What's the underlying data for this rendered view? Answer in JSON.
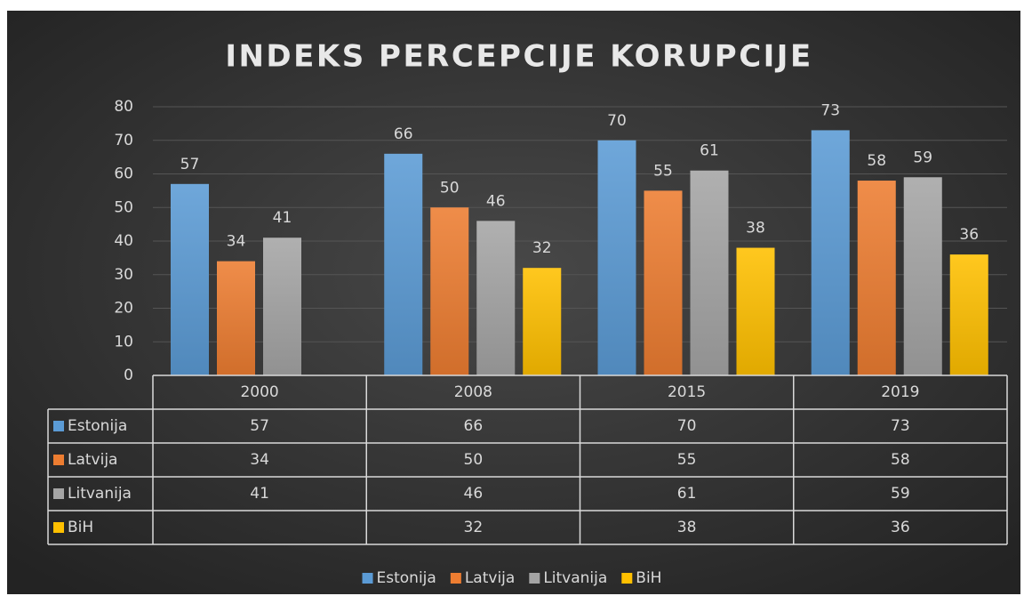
{
  "chart_data": {
    "type": "bar",
    "title": "INDEKS PERCEPCIJE KORUPCIJE",
    "categories": [
      "2000",
      "2008",
      "2015",
      "2019"
    ],
    "series": [
      {
        "name": "Estonija",
        "color": "#5b9bd5",
        "values": [
          57,
          66,
          70,
          73
        ]
      },
      {
        "name": "Latvija",
        "color": "#ed7d31",
        "values": [
          34,
          50,
          55,
          58
        ]
      },
      {
        "name": "Litvanija",
        "color": "#a5a5a5",
        "values": [
          41,
          46,
          61,
          59
        ]
      },
      {
        "name": "BiH",
        "color": "#ffc000",
        "values": [
          null,
          32,
          38,
          36
        ]
      }
    ],
    "ylim": [
      0,
      80
    ],
    "yticks": [
      0,
      10,
      20,
      30,
      40,
      50,
      60,
      70,
      80
    ],
    "grid": true,
    "data_table": true,
    "legend": "bottom"
  }
}
